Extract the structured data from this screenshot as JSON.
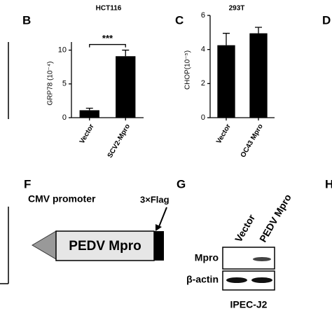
{
  "panels": {
    "b": "B",
    "c": "C",
    "d": "D",
    "f": "F",
    "g": "G",
    "h": "H"
  },
  "chart_data": [
    {
      "type": "bar",
      "title": "HCT116",
      "y_label": "GRP78 (10⁻⁴)",
      "categories": [
        "Vector",
        "SCV2-Mpro"
      ],
      "values": [
        1.1,
        9.1
      ],
      "errors": [
        0.3,
        0.9
      ],
      "color": "#000000",
      "ylim": [
        0,
        11.2
      ],
      "yticks": [
        0,
        5,
        10
      ],
      "annotation": "***"
    },
    {
      "type": "bar",
      "title": "293T",
      "y_label": "CHOP(10⁻⁵)",
      "categories": [
        "Vector",
        "OC43 Mpro"
      ],
      "values": [
        4.25,
        4.95
      ],
      "errors": [
        0.7,
        0.35
      ],
      "color": "#000000",
      "ylim": [
        0,
        6
      ],
      "yticks": [
        0,
        2,
        4,
        6
      ]
    }
  ],
  "construct": {
    "promoter": "CMV promoter",
    "gene": "PEDV Mpro",
    "tag": "3×Flag"
  },
  "blot": {
    "lanes": [
      "Vector",
      "PEDV Mpro"
    ],
    "rows": [
      "Mpro",
      "β-actin"
    ],
    "cell_line": "IPEC-J2"
  }
}
